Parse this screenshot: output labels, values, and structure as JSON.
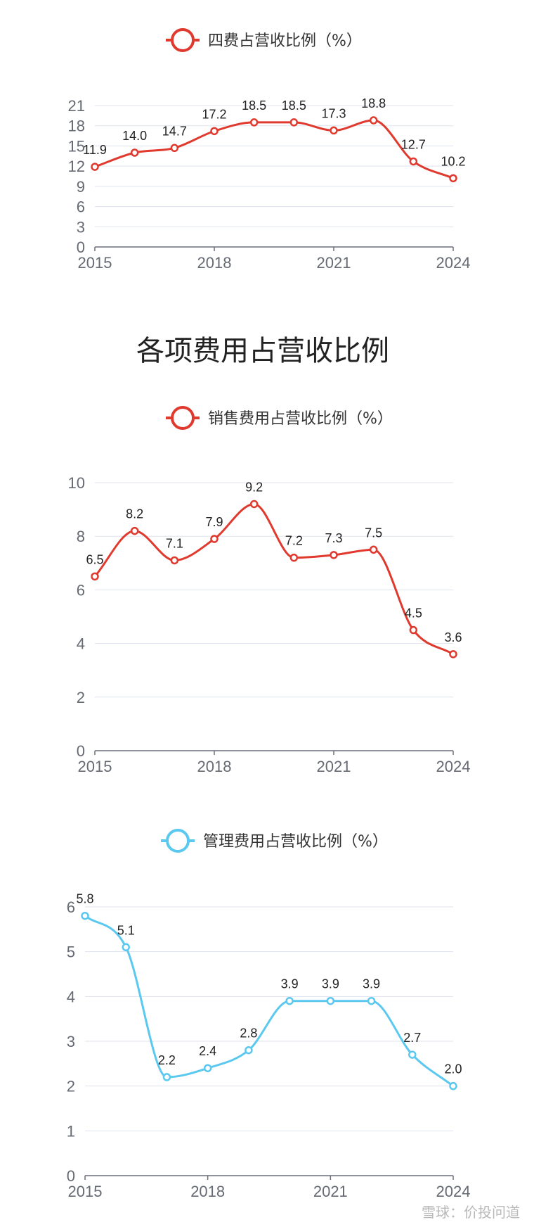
{
  "section_title": "各项费用占营收比例",
  "watermark": "雪球：价投问道",
  "chart_data": [
    {
      "type": "line",
      "legend": "四费占营收比例（%）",
      "color": "#e03a2f",
      "x": [
        2015,
        2016,
        2017,
        2018,
        2019,
        2020,
        2021,
        2022,
        2023,
        2024
      ],
      "x_tick_labels": [
        "2015",
        "2018",
        "2021",
        "2024"
      ],
      "y_ticks": [
        0,
        3,
        6,
        9,
        12,
        15,
        18,
        21
      ],
      "ylim": [
        0,
        21
      ],
      "grid": true,
      "series": [
        {
          "values": [
            11.9,
            14.0,
            14.7,
            17.2,
            18.5,
            18.5,
            17.3,
            18.8,
            12.7,
            10.2
          ],
          "labels": [
            "11.9",
            "14.0",
            "14.7",
            "17.2",
            "18.5",
            "18.5",
            "17.3",
            "18.8",
            "12.7",
            "10.2"
          ]
        }
      ]
    },
    {
      "type": "line",
      "legend": "销售费用占营收比例（%）",
      "color": "#e03a2f",
      "x": [
        2015,
        2016,
        2017,
        2018,
        2019,
        2020,
        2021,
        2022,
        2023,
        2024
      ],
      "x_tick_labels": [
        "2015",
        "2018",
        "2021",
        "2024"
      ],
      "y_ticks": [
        0,
        2,
        4,
        6,
        8,
        10
      ],
      "ylim": [
        0,
        10
      ],
      "grid": true,
      "series": [
        {
          "values": [
            6.5,
            8.2,
            7.1,
            7.9,
            9.2,
            7.2,
            7.3,
            7.5,
            4.5,
            3.6
          ],
          "labels": [
            "6.5",
            "8.2",
            "7.1",
            "7.9",
            "9.2",
            "7.2",
            "7.3",
            "7.5",
            "4.5",
            "3.6"
          ]
        }
      ]
    },
    {
      "type": "line",
      "legend": "管理费用占营收比例（%）",
      "color": "#5bc8f0",
      "x": [
        2015,
        2016,
        2017,
        2018,
        2019,
        2020,
        2021,
        2022,
        2023,
        2024
      ],
      "x_tick_labels": [
        "2015",
        "2018",
        "2021",
        "2024"
      ],
      "y_ticks": [
        0,
        1,
        2,
        3,
        4,
        5,
        6
      ],
      "ylim": [
        0,
        6
      ],
      "grid": true,
      "series": [
        {
          "values": [
            5.8,
            5.1,
            2.2,
            2.4,
            2.8,
            3.9,
            3.9,
            3.9,
            2.7,
            2.0
          ],
          "labels": [
            "5.8",
            "5.1",
            "2.2",
            "2.4",
            "2.8",
            "3.9",
            "3.9",
            "3.9",
            "2.7",
            "2.0"
          ]
        }
      ]
    }
  ]
}
